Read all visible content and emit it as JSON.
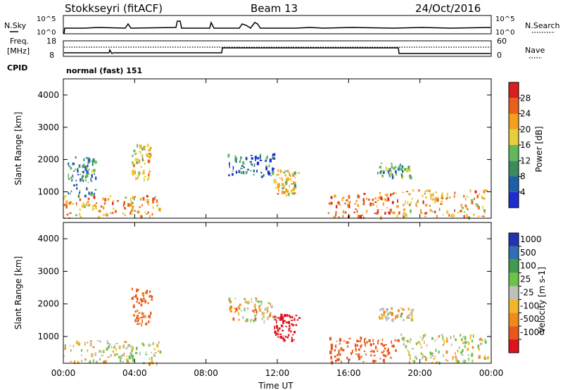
{
  "header": {
    "radar": "Stokkseyri (fitACF)",
    "beam": "Beam 13",
    "date": "24/Oct/2016"
  },
  "top_panels": {
    "nsky_label": "N.Sky",
    "nsearch_label": "N.Search",
    "nsky_ticks": [
      "10^5",
      "10^0"
    ],
    "freq_label_1": "Freq.",
    "freq_label_2": "[MHz]",
    "freq_ticks": [
      "18",
      "8"
    ],
    "nave_label": "Nave",
    "nave_ticks": [
      "60",
      "0"
    ],
    "cpid_label": "CPID",
    "cpid_text": "normal (fast) 151"
  },
  "colors": {
    "power": [
      "#1f2ccf",
      "#1f5fa8",
      "#3b8c5c",
      "#62b85a",
      "#e6cf3a",
      "#f2a11e",
      "#e8601a",
      "#d81e1e"
    ],
    "velocity": [
      "#e0121d",
      "#e8581a",
      "#ee8b1c",
      "#f2b62a",
      "#c0c0b8",
      "#6dc247",
      "#3e9c4a",
      "#2f6fb3",
      "#2433b0"
    ]
  },
  "chart_data": [
    {
      "type": "heatmap",
      "title": "",
      "xlabel": "",
      "ylabel": "Slant Range [km]",
      "colorbar_label": "Power [dB]",
      "x_range": [
        "00:00",
        "24:00"
      ],
      "ylim": [
        180,
        4500
      ],
      "x_ticks": [
        "00:00",
        "04:00",
        "08:00",
        "12:00",
        "16:00",
        "20:00",
        "00:00"
      ],
      "y_ticks": [
        "1000",
        "2000",
        "3000",
        "4000"
      ],
      "colorbar_ticks": [
        "4",
        "8",
        "12",
        "16",
        "20",
        "24",
        "28"
      ],
      "colorbar_range": [
        0,
        32
      ],
      "echo_regions": [
        {
          "t0": 0.0,
          "t1": 5.4,
          "r0": 200,
          "r1": 900,
          "power": 22
        },
        {
          "t0": 0.2,
          "t1": 1.8,
          "r0": 900,
          "r1": 2100,
          "power": 10
        },
        {
          "t0": 3.8,
          "t1": 4.9,
          "r0": 1400,
          "r1": 2500,
          "power": 18
        },
        {
          "t0": 9.2,
          "t1": 11.8,
          "r0": 1500,
          "r1": 2200,
          "power": 8
        },
        {
          "t0": 11.8,
          "t1": 13.2,
          "r0": 900,
          "r1": 1700,
          "power": 18
        },
        {
          "t0": 14.8,
          "t1": 18.8,
          "r0": 220,
          "r1": 1000,
          "power": 26
        },
        {
          "t0": 17.6,
          "t1": 19.6,
          "r0": 1500,
          "r1": 1900,
          "power": 12
        },
        {
          "t0": 18.9,
          "t1": 23.8,
          "r0": 220,
          "r1": 1100,
          "power": 22
        }
      ]
    },
    {
      "type": "heatmap",
      "title": "",
      "xlabel": "Time UT",
      "ylabel": "Slant Range [km]",
      "colorbar_label": "Velocity [m s-1]",
      "x_range": [
        "00:00",
        "24:00"
      ],
      "ylim": [
        180,
        4500
      ],
      "x_ticks": [
        "00:00",
        "04:00",
        "08:00",
        "12:00",
        "16:00",
        "20:00",
        "00:00"
      ],
      "y_ticks": [
        "1000",
        "2000",
        "3000",
        "4000"
      ],
      "colorbar_ticks": [
        "1000",
        "500",
        "100",
        "25",
        "-25",
        "-100",
        "-500",
        "-1000"
      ],
      "echo_regions": [
        {
          "t0": 0.0,
          "t1": 5.4,
          "r0": 200,
          "r1": 900,
          "velocity": 60
        },
        {
          "t0": 3.8,
          "t1": 4.9,
          "r0": 1400,
          "r1": 2500,
          "velocity": -150
        },
        {
          "t0": 9.2,
          "t1": 11.8,
          "r0": 1500,
          "r1": 2200,
          "velocity": 0
        },
        {
          "t0": 11.8,
          "t1": 13.2,
          "r0": 900,
          "r1": 1700,
          "velocity": -700
        },
        {
          "t0": 14.8,
          "t1": 18.8,
          "r0": 220,
          "r1": 1000,
          "velocity": -300
        },
        {
          "t0": 17.6,
          "t1": 19.6,
          "r0": 1500,
          "r1": 1900,
          "velocity": 0
        },
        {
          "t0": 18.9,
          "t1": 23.8,
          "r0": 220,
          "r1": 1100,
          "velocity": 70
        }
      ]
    }
  ]
}
